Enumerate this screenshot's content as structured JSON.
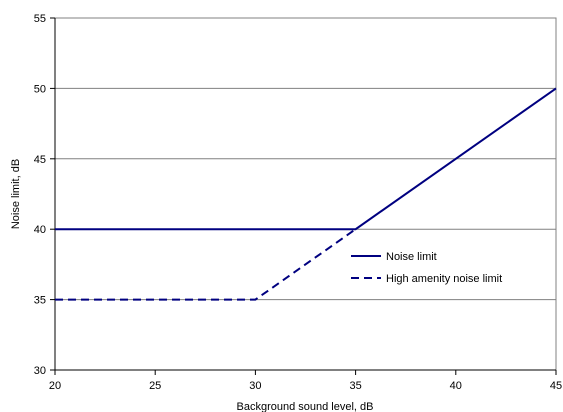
{
  "chart_data": {
    "type": "line",
    "xlabel": "Background sound level, dB",
    "ylabel": "Noise limit, dB",
    "xlim": [
      20,
      45
    ],
    "ylim": [
      30,
      55
    ],
    "x_ticks": [
      20,
      25,
      30,
      35,
      40,
      45
    ],
    "y_ticks": [
      30,
      35,
      40,
      45,
      50,
      55
    ],
    "grid": "horizontal",
    "legend_position": "right",
    "series": [
      {
        "name": "Noise limit",
        "style": "solid",
        "color": "#000080",
        "points": [
          [
            20,
            40
          ],
          [
            35,
            40
          ],
          [
            45,
            50
          ]
        ]
      },
      {
        "name": "High amenity noise limit",
        "style": "dashed",
        "color": "#000080",
        "points": [
          [
            20,
            35
          ],
          [
            30,
            35
          ],
          [
            35,
            40
          ]
        ]
      }
    ]
  }
}
